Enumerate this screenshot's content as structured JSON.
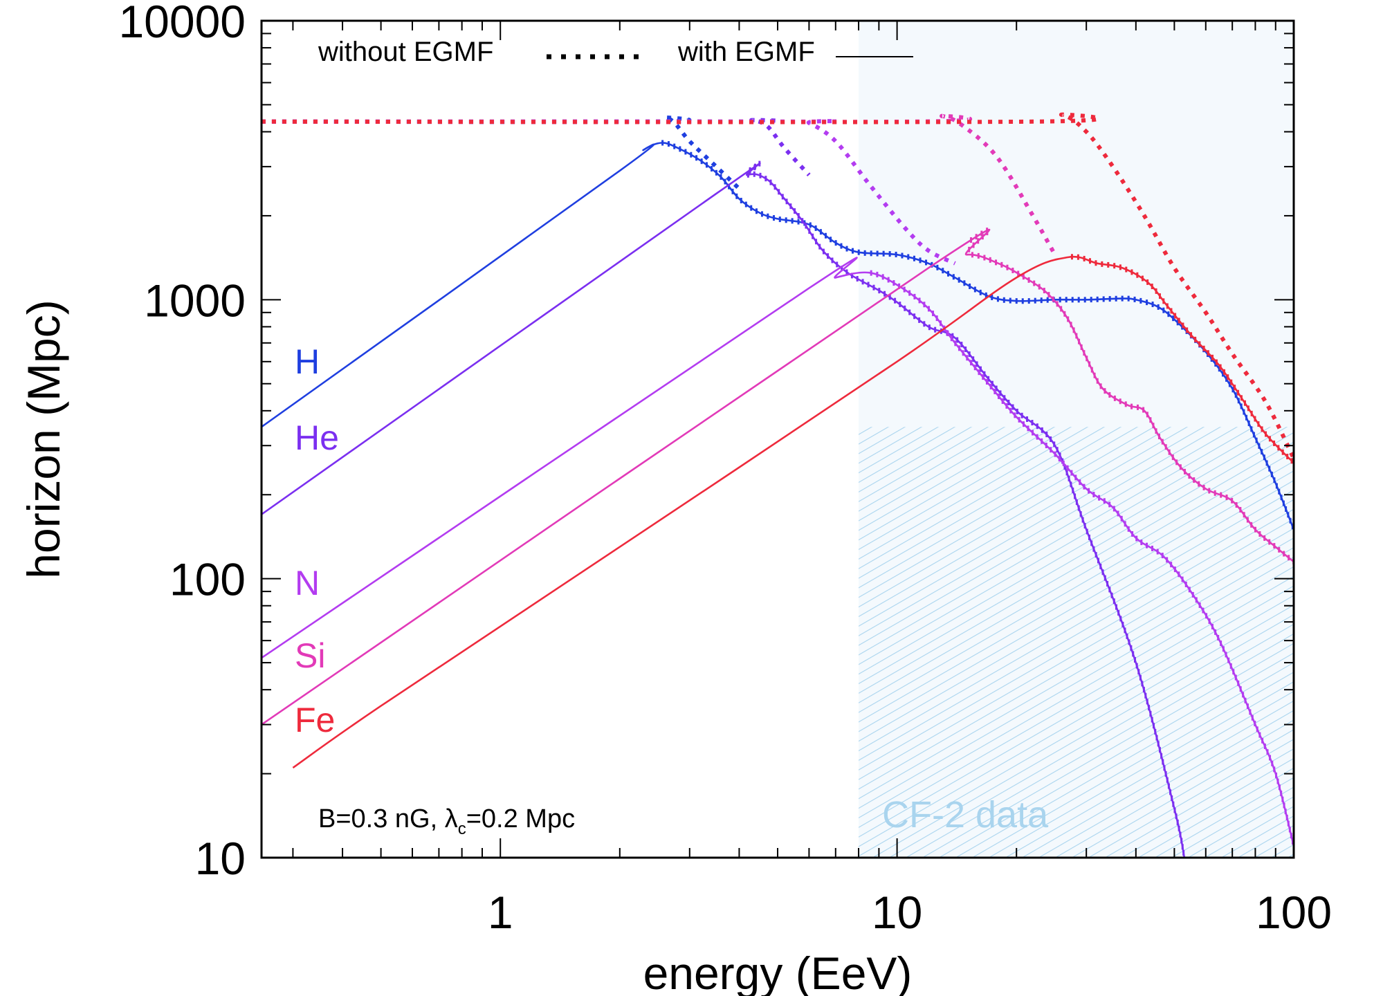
{
  "chart_data": {
    "type": "line",
    "xlabel": "energy (EeV)",
    "ylabel": "horizon (Mpc)",
    "xscale": "log",
    "yscale": "log",
    "xlim": [
      0.25,
      100
    ],
    "ylim": [
      10,
      10000
    ],
    "x_ticks": [
      1,
      10,
      100
    ],
    "x_tick_labels": [
      "1",
      "10",
      "100"
    ],
    "y_ticks": [
      10,
      100,
      1000,
      10000
    ],
    "y_tick_labels": [
      "10",
      "100",
      "1000",
      "10000"
    ],
    "grid": false,
    "legend": {
      "placement": "top-left",
      "without_label": "without EGMF",
      "with_label": "with EGMF"
    },
    "annotations": {
      "params_text": "B=0.3 nG, λ",
      "params_sub": "c",
      "params_rest": "=0.2 Mpc",
      "shaded_region_label": "CF-2 data",
      "shaded_region_color": "#a9d4ee"
    },
    "shaded_regions": [
      {
        "x": [
          8,
          100
        ],
        "y": [
          10,
          10000
        ],
        "style": "light-fill"
      },
      {
        "x": [
          8,
          100
        ],
        "y": [
          10,
          350
        ],
        "style": "hatched"
      }
    ],
    "series": [
      {
        "name": "H",
        "color": "#1f3fe0",
        "without_egmf": [
          [
            0.25,
            4350
          ],
          [
            2.5,
            4350
          ],
          [
            2.6,
            4500
          ],
          [
            2.75,
            4300
          ],
          [
            3.0,
            3700
          ],
          [
            3.5,
            3000
          ],
          [
            4,
            2500
          ]
        ],
        "with_egmf": [
          [
            0.25,
            350
          ],
          [
            2.0,
            2900
          ],
          [
            2.3,
            3450
          ],
          [
            2.55,
            3650
          ],
          [
            2.8,
            3500
          ],
          [
            3.2,
            3150
          ],
          [
            3.6,
            2750
          ],
          [
            4.0,
            2300
          ],
          [
            4.5,
            2050
          ],
          [
            5.0,
            1950
          ],
          [
            6.0,
            1860
          ],
          [
            7.0,
            1600
          ],
          [
            8.0,
            1480
          ],
          [
            10,
            1450
          ],
          [
            12,
            1350
          ],
          [
            14,
            1200
          ],
          [
            17,
            1030
          ],
          [
            20,
            990
          ],
          [
            25,
            1000
          ],
          [
            30,
            1000
          ],
          [
            37,
            1010
          ],
          [
            40,
            1000
          ],
          [
            45,
            950
          ],
          [
            50,
            850
          ],
          [
            60,
            650
          ],
          [
            70,
            480
          ],
          [
            80,
            320
          ],
          [
            90,
            220
          ],
          [
            100,
            150
          ]
        ]
      },
      {
        "name": "He",
        "color": "#7b2ff0",
        "without_egmf": [
          [
            0.25,
            4350
          ],
          [
            4.0,
            4350
          ],
          [
            4.3,
            4400
          ],
          [
            4.7,
            4200
          ],
          [
            5.2,
            3500
          ],
          [
            6.0,
            2800
          ]
        ],
        "with_egmf": [
          [
            0.25,
            170
          ],
          [
            3.5,
            2400
          ],
          [
            4.2,
            2800
          ],
          [
            4.7,
            2700
          ],
          [
            5.2,
            2300
          ],
          [
            5.8,
            1900
          ],
          [
            6.5,
            1500
          ],
          [
            7.5,
            1250
          ],
          [
            9,
            1080
          ],
          [
            10,
            980
          ],
          [
            12,
            800
          ],
          [
            14,
            730
          ],
          [
            17,
            520
          ],
          [
            20,
            400
          ],
          [
            25,
            300
          ],
          [
            30,
            150
          ],
          [
            40,
            50
          ],
          [
            50,
            15
          ],
          [
            53,
            10
          ]
        ]
      },
      {
        "name": "N",
        "color": "#b33cf0",
        "without_egmf": [
          [
            0.25,
            4350
          ],
          [
            5.5,
            4350
          ],
          [
            6.0,
            4300
          ],
          [
            7.0,
            3700
          ],
          [
            8.5,
            2600
          ],
          [
            10.5,
            1800
          ],
          [
            12,
            1500
          ],
          [
            14,
            1350
          ]
        ],
        "with_egmf": [
          [
            0.25,
            52
          ],
          [
            6.0,
            1100
          ],
          [
            7.0,
            1200
          ],
          [
            8.5,
            1250
          ],
          [
            10,
            1130
          ],
          [
            12,
            930
          ],
          [
            14,
            700
          ],
          [
            17,
            500
          ],
          [
            20,
            380
          ],
          [
            25,
            280
          ],
          [
            30,
            210
          ],
          [
            35,
            180
          ],
          [
            40,
            140
          ],
          [
            47,
            120
          ],
          [
            55,
            90
          ],
          [
            65,
            60
          ],
          [
            80,
            30
          ],
          [
            90,
            20
          ],
          [
            100,
            11
          ]
        ]
      },
      {
        "name": "Si",
        "color": "#e23ab8",
        "without_egmf": [
          [
            0.25,
            4350
          ],
          [
            11,
            4350
          ],
          [
            13,
            4550
          ],
          [
            15,
            4100
          ],
          [
            18,
            3200
          ],
          [
            22,
            2000
          ],
          [
            25,
            1450
          ]
        ],
        "with_egmf": [
          [
            0.25,
            30
          ],
          [
            12,
            1300
          ],
          [
            15,
            1450
          ],
          [
            18,
            1350
          ],
          [
            21,
            1200
          ],
          [
            24,
            1050
          ],
          [
            27,
            850
          ],
          [
            30,
            620
          ],
          [
            33,
            480
          ],
          [
            38,
            420
          ],
          [
            42,
            400
          ],
          [
            46,
            320
          ],
          [
            52,
            250
          ],
          [
            60,
            210
          ],
          [
            70,
            190
          ],
          [
            80,
            150
          ],
          [
            90,
            130
          ],
          [
            100,
            115
          ]
        ]
      },
      {
        "name": "Fe",
        "color": "#ee2a3c",
        "without_egmf": [
          [
            0.25,
            4350
          ],
          [
            22,
            4350
          ],
          [
            26,
            4600
          ],
          [
            30,
            4000
          ],
          [
            35,
            3000
          ],
          [
            42,
            2000
          ],
          [
            50,
            1300
          ],
          [
            60,
            900
          ],
          [
            70,
            640
          ],
          [
            85,
            430
          ],
          [
            100,
            270
          ]
        ],
        "with_egmf": [
          [
            0.3,
            21
          ],
          [
            0.5,
            35
          ],
          [
            2.0,
            130
          ],
          [
            10,
            600
          ],
          [
            20,
            1200
          ],
          [
            27,
            1420
          ],
          [
            32,
            1350
          ],
          [
            37,
            1300
          ],
          [
            43,
            1150
          ],
          [
            48,
            950
          ],
          [
            55,
            750
          ],
          [
            65,
            580
          ],
          [
            75,
            430
          ],
          [
            85,
            330
          ],
          [
            100,
            260
          ]
        ]
      }
    ]
  }
}
